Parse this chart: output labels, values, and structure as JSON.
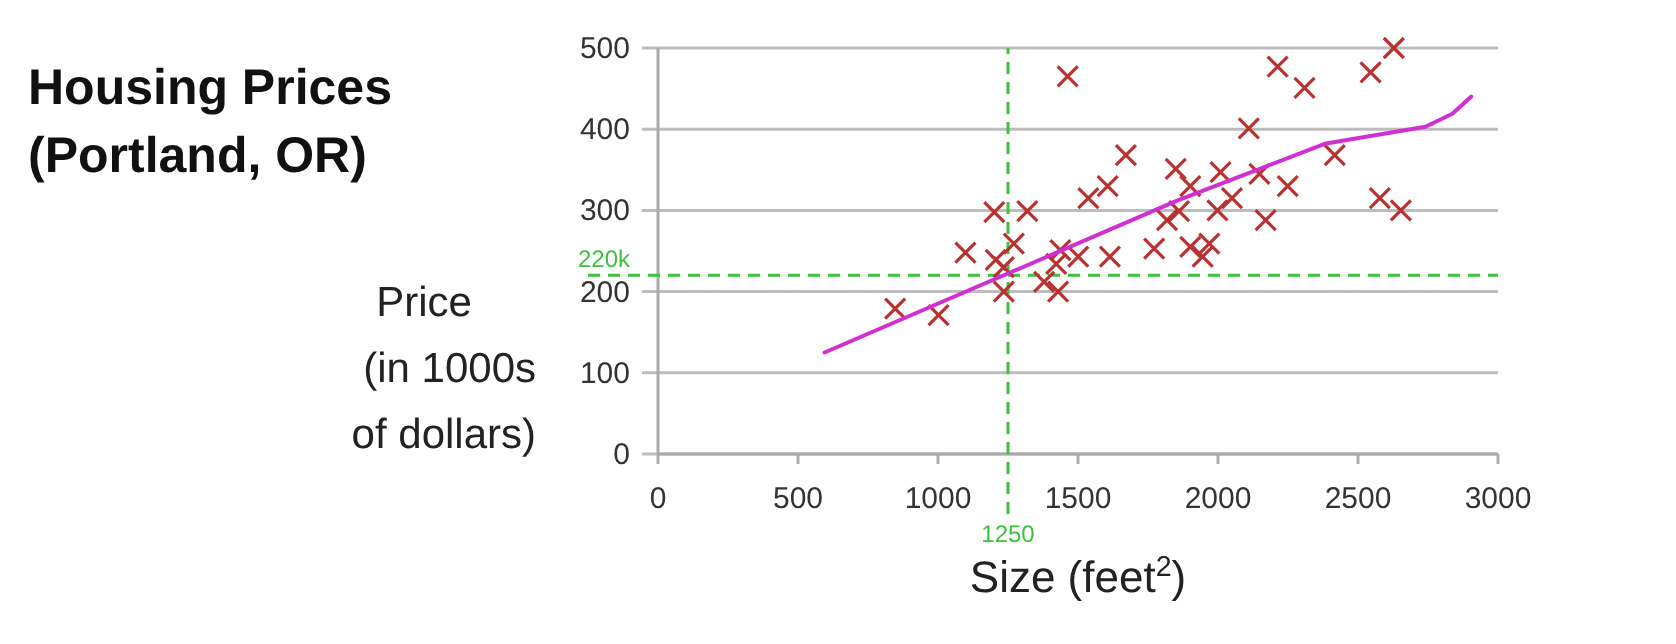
{
  "chart_data": {
    "type": "scatter",
    "title": "Housing Prices\n(Portland, OR)",
    "xlabel": "Size (feet$^{2}$)",
    "ylabel": "Price\n(in 1000s\nof dollars)",
    "xlim": [
      0,
      3000
    ],
    "ylim": [
      0,
      500
    ],
    "xticks": [
      0,
      500,
      1000,
      1500,
      2000,
      2500,
      3000
    ],
    "yticks": [
      0,
      100,
      200,
      300,
      400,
      500
    ],
    "grid": "y",
    "marker": "cross",
    "series": [
      {
        "color": "#b83232",
        "x": [
          847,
          1002,
          1098,
          1201,
          1206,
          1235,
          1235,
          1271,
          1319,
          1379,
          1422,
          1429,
          1437,
          1463,
          1501,
          1537,
          1606,
          1614,
          1671,
          1772,
          1818,
          1849,
          1861,
          1901,
          1901,
          1945,
          1969,
          1998,
          2009,
          2050,
          2110,
          2148,
          2170,
          2213,
          2249,
          2309,
          2417,
          2545,
          2578,
          2628,
          2653
        ],
        "values": [
          179,
          171,
          248,
          298,
          239,
          230,
          200,
          259,
          299,
          212,
          234,
          200,
          251,
          465,
          243,
          315,
          330,
          243,
          368,
          253,
          288,
          351,
          299,
          330,
          255,
          243,
          259,
          300,
          347,
          315,
          401,
          345,
          288,
          477,
          330,
          451,
          368,
          470,
          315,
          500,
          300
        ]
      },
      {
        "type": "line",
        "color": "#d030d0",
        "marker": "none",
        "x": [
          595,
          1854,
          2381,
          2741,
          2837,
          2904
        ],
        "values": [
          125,
          312,
          382,
          403,
          419,
          440
        ]
      }
    ],
    "ref_lines": [
      {
        "axis": "y",
        "value": 220,
        "label": "220k",
        "color": "#40c040",
        "line_style": "dashed"
      },
      {
        "axis": "x",
        "value": 1250,
        "label": "1250",
        "color": "#40c040",
        "line_style": "dashed"
      }
    ]
  }
}
